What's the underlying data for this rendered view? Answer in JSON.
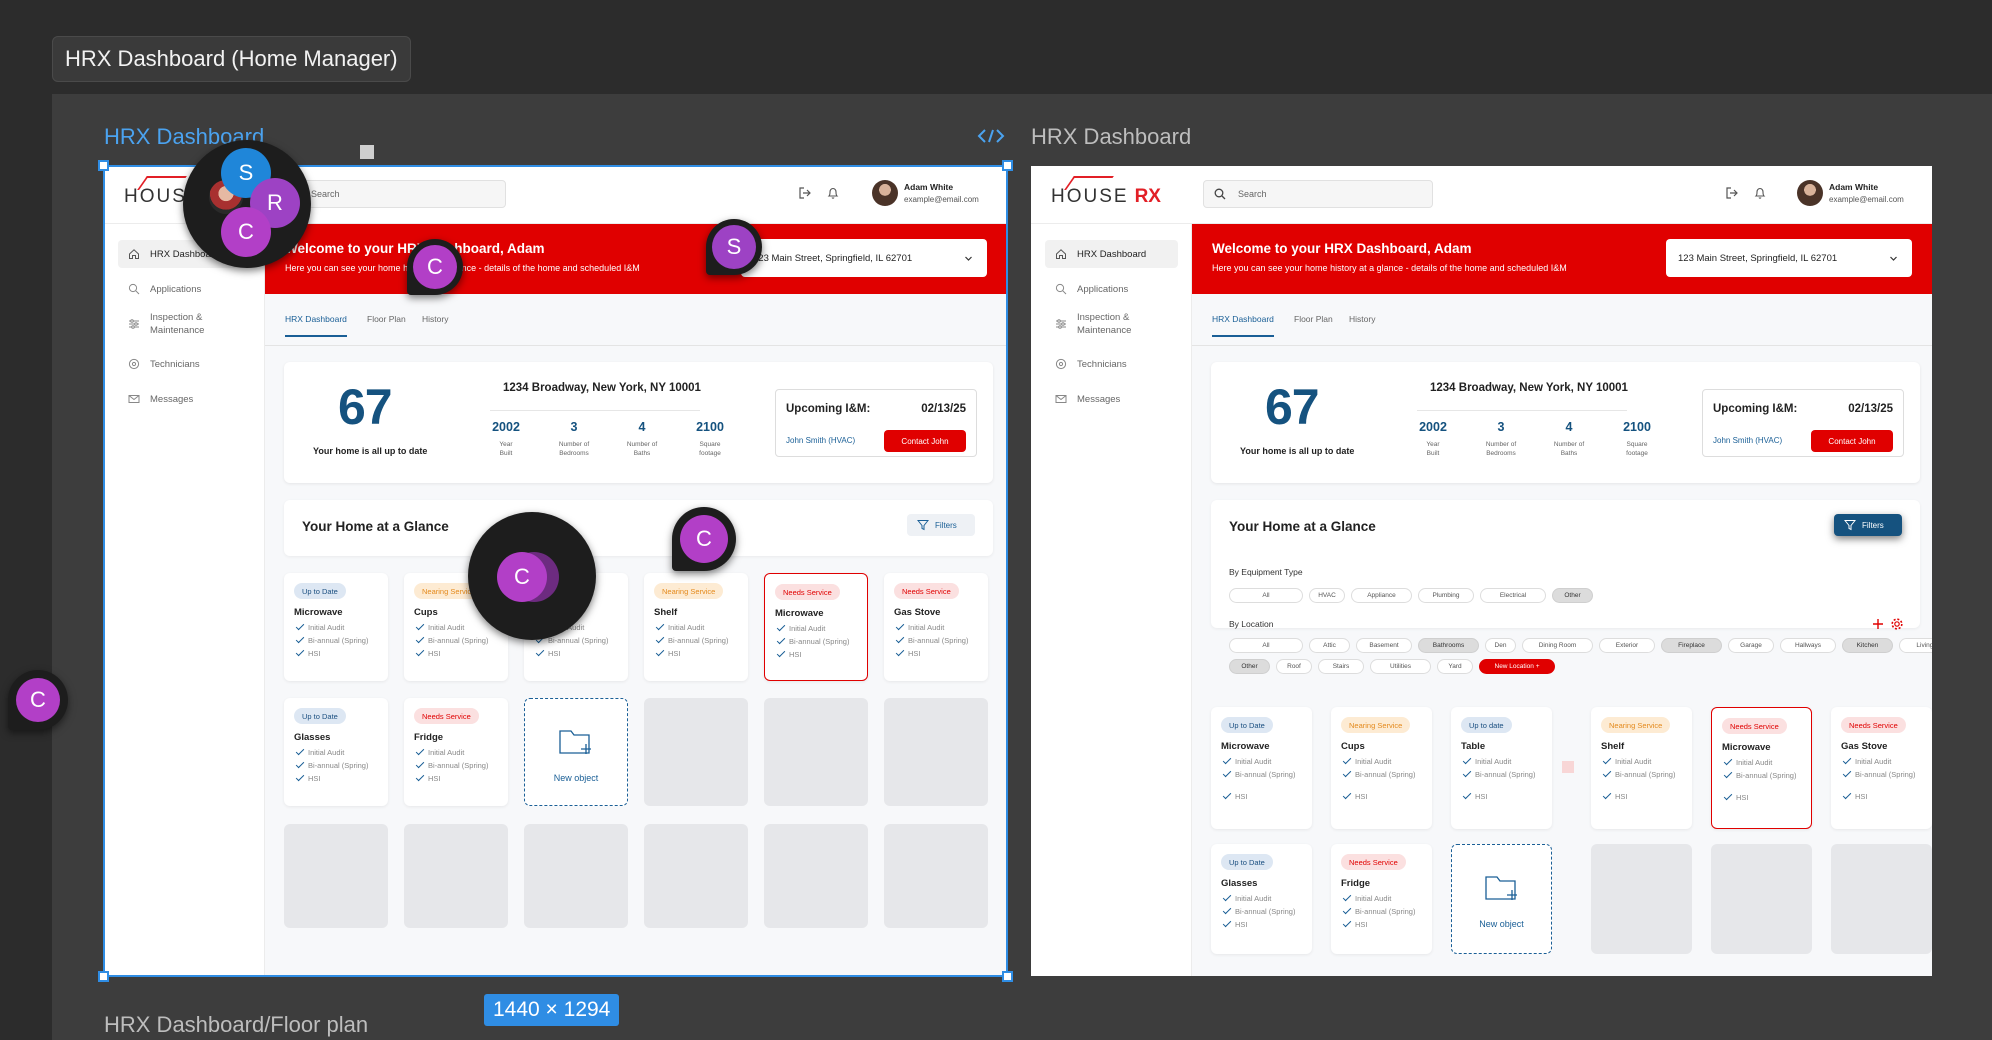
{
  "figma": {
    "page_title": "HRX Dashboard (Home Manager)",
    "frame_left_label": "HRX Dashboard",
    "frame_right_label": "HRX Dashboard",
    "frame_bottom_label": "HRX Dashboard/Floor plan",
    "size_tag": "1440 × 1294",
    "code_icon": "code-icon",
    "selection_color": "#2f8de4",
    "collaborators": [
      "S",
      "R",
      "C",
      "C",
      "S",
      "C",
      "C",
      "C"
    ]
  },
  "app": {
    "logo_text_1": "HOUSE",
    "logo_text_2": "RX",
    "search_placeholder": "Search",
    "user_name": "Adam White",
    "user_email": "example@email.com",
    "accent_red": "#e00000",
    "accent_blue": "#15527f",
    "nav": [
      {
        "label": "HRX Dashboard",
        "icon": "home-icon"
      },
      {
        "label": "Applications",
        "icon": "search-icon"
      },
      {
        "label": "Inspection & Maintenance",
        "icon": "sliders-icon"
      },
      {
        "label": "Technicians",
        "icon": "target-icon"
      },
      {
        "label": "Messages",
        "icon": "mail-icon"
      }
    ],
    "banner_title": "Welcome to your HRX Dashboard, Adam",
    "banner_subtitle": "Here you can see your home history at a glance - details of the home and scheduled I&M",
    "address_select": "123 Main Street, Springfield, IL 62701",
    "tabs": [
      "HRX Dashboard",
      "Floor Plan",
      "History"
    ],
    "score": "67",
    "score_text": "Your home is all up to date",
    "home_address": "1234 Broadway, New York, NY 10001",
    "stats": [
      {
        "value": "2002",
        "label": "Year Built"
      },
      {
        "value": "3",
        "label": "Number of Bedrooms"
      },
      {
        "value": "4",
        "label": "Number of Baths"
      },
      {
        "value": "2100",
        "label": "Square footage"
      }
    ],
    "upcoming_label": "Upcoming I&M:",
    "upcoming_date": "02/13/25",
    "upcoming_tech": "John Smith (HVAC)",
    "contact_label": "Contact John",
    "glance_title": "Your Home at a Glance",
    "filters_label": "Filters",
    "checks": [
      "Initial Audit",
      "Bi-annual (Spring)",
      "HSI"
    ],
    "new_object_label": "New object",
    "cards_row1": [
      {
        "status": "Up to Date",
        "name": "Microwave",
        "kind": "up"
      },
      {
        "status": "Nearing Service",
        "name": "Cups",
        "kind": "near"
      },
      {
        "status": "Up to date",
        "name": "Table",
        "kind": "up"
      },
      {
        "status": "Nearing Service",
        "name": "Shelf",
        "kind": "near"
      },
      {
        "status": "Needs Service",
        "name": "Microwave",
        "kind": "need"
      },
      {
        "status": "Needs Service",
        "name": "Gas Stove",
        "kind": "need"
      }
    ],
    "cards_row2": [
      {
        "status": "Up to Date",
        "name": "Glasses",
        "kind": "up"
      },
      {
        "status": "Needs Service",
        "name": "Fridge",
        "kind": "need"
      }
    ],
    "filter_panel": {
      "equipment_label": "By Equipment Type",
      "equipment_chips": [
        "All",
        "HVAC",
        "Appliance",
        "Plumbing",
        "Electrical",
        "Other"
      ],
      "location_label": "By Location",
      "location_chips_1": [
        "All",
        "Attic",
        "Basement",
        "Bathrooms",
        "Den",
        "Dining Room",
        "Exterior",
        "Fireplace",
        "Garage",
        "Hallways",
        "Kitchen",
        "Living Room"
      ],
      "location_chips_2": [
        "Other",
        "Roof",
        "Stairs",
        "Utilities",
        "Yard"
      ],
      "new_location_label": "New Location +",
      "add_icon": "plus-icon",
      "settings_icon": "gear-icon"
    }
  }
}
